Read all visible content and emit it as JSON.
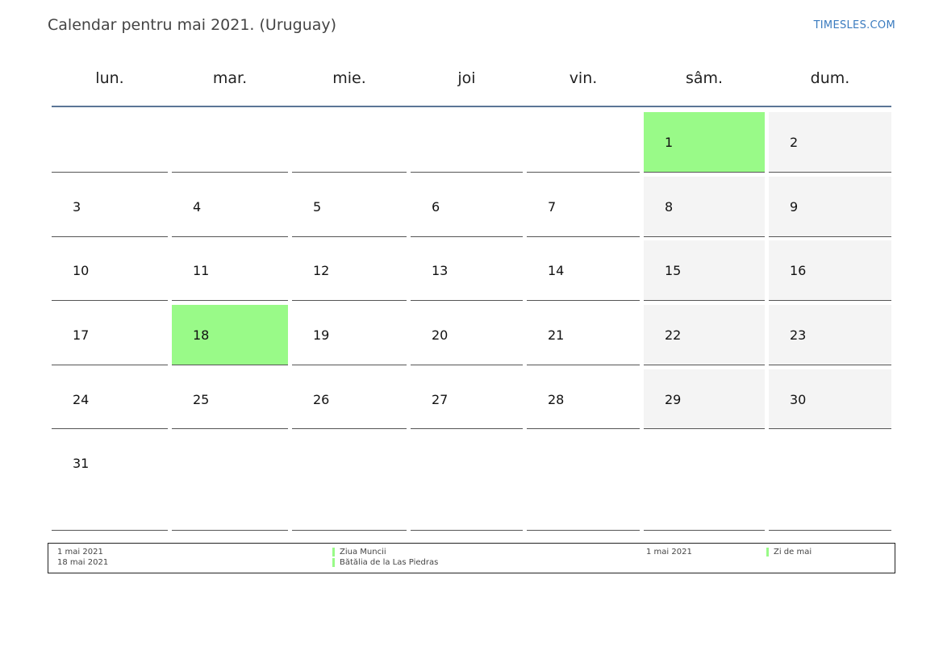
{
  "title": "Calendar pentru mai 2021. (Uruguay)",
  "brand": "TIMESLES.COM",
  "days": [
    "lun.",
    "mar.",
    "mie.",
    "joi",
    "vin.",
    "sâm.",
    "dum."
  ],
  "weeks": [
    [
      "",
      "",
      "",
      "",
      "",
      "1",
      "2"
    ],
    [
      "3",
      "4",
      "5",
      "6",
      "7",
      "8",
      "9"
    ],
    [
      "10",
      "11",
      "12",
      "13",
      "14",
      "15",
      "16"
    ],
    [
      "17",
      "18",
      "19",
      "20",
      "21",
      "22",
      "23"
    ],
    [
      "24",
      "25",
      "26",
      "27",
      "28",
      "29",
      "30"
    ],
    [
      "31",
      "",
      "",
      "",
      "",
      "",
      ""
    ]
  ],
  "holidays": [
    "1",
    "18"
  ],
  "colors": {
    "holiday": "#99fa88",
    "weekend": "#f4f4f4",
    "rule": "#5b7596",
    "brand": "#3a7bbf"
  },
  "legend": {
    "holidays": [
      {
        "date": "1 mai 2021",
        "name": "Ziua Muncii"
      },
      {
        "date": "18 mai 2021",
        "name": "Bătălia de la Las Piedras"
      }
    ],
    "observances": [
      {
        "date": "1 mai 2021",
        "name": "Zi de mai"
      }
    ]
  }
}
